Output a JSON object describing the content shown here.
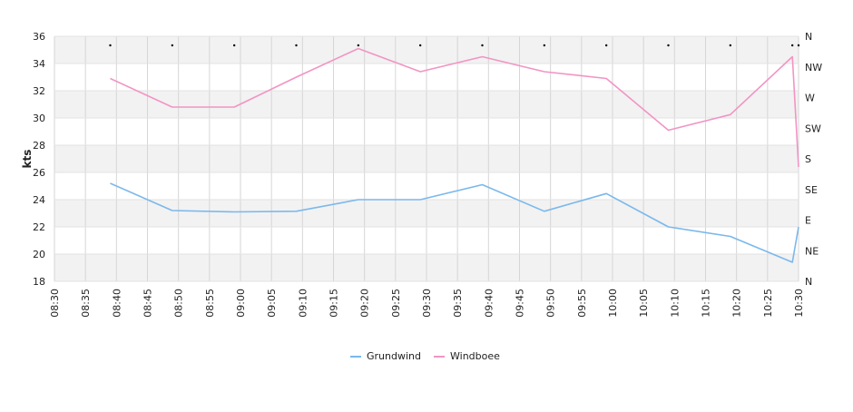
{
  "chart_data": {
    "type": "line",
    "ylabel": "kts",
    "ylim": [
      18,
      36
    ],
    "y_ticks": [
      "18",
      "20",
      "22",
      "24",
      "26",
      "28",
      "30",
      "32",
      "34",
      "36"
    ],
    "x_ticks": [
      "08:30",
      "08:35",
      "08:40",
      "08:45",
      "08:50",
      "08:55",
      "09:00",
      "09:05",
      "09:10",
      "09:15",
      "09:20",
      "09:25",
      "09:30",
      "09:35",
      "09:40",
      "09:45",
      "09:50",
      "09:55",
      "10:00",
      "10:05",
      "10:10",
      "10:15",
      "10:20",
      "10:25",
      "10:30"
    ],
    "x_range": [
      "08:30",
      "10:30"
    ],
    "right_axis_labels": [
      "N",
      "NW",
      "W",
      "SW",
      "S",
      "SE",
      "E",
      "NE",
      "N"
    ],
    "grid": true,
    "legend_position": "bottom-center",
    "series": [
      {
        "name": "Grundwind",
        "color": "#7ab8ec",
        "x": [
          "08:39",
          "08:49",
          "08:59",
          "09:09",
          "09:19",
          "09:29",
          "09:39",
          "09:49",
          "09:59",
          "10:09",
          "10:19",
          "10:29",
          "10:30"
        ],
        "values": [
          25.2,
          23.2,
          23.1,
          23.15,
          24.0,
          24.0,
          25.1,
          23.15,
          24.45,
          22.0,
          21.3,
          19.4,
          22.0
        ]
      },
      {
        "name": "Windboee",
        "color": "#f294c4",
        "x": [
          "08:39",
          "08:49",
          "08:59",
          "09:09",
          "09:19",
          "09:29",
          "09:39",
          "09:49",
          "09:59",
          "10:09",
          "10:19",
          "10:29",
          "10:30"
        ],
        "values": [
          32.9,
          30.8,
          30.8,
          33.0,
          35.1,
          33.4,
          34.5,
          33.4,
          32.9,
          29.1,
          30.25,
          34.5,
          26.4
        ]
      }
    ],
    "direction_markers": [
      "08:39",
      "08:49",
      "08:59",
      "09:09",
      "09:19",
      "09:29",
      "09:39",
      "09:49",
      "09:59",
      "10:09",
      "10:19",
      "10:29",
      "10:30"
    ]
  }
}
